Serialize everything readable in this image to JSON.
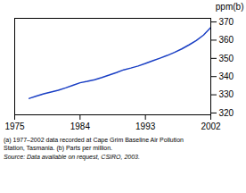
{
  "chart_data": {
    "type": "line",
    "ylabel": "ppm(b)",
    "x": [
      1977,
      1978,
      1979,
      1980,
      1981,
      1982,
      1983,
      1984,
      1985,
      1986,
      1987,
      1988,
      1989,
      1990,
      1991,
      1992,
      1993,
      1994,
      1995,
      1996,
      1997,
      1998,
      1999,
      2000,
      2001,
      2002
    ],
    "values": [
      328.0,
      329.3,
      330.5,
      331.5,
      332.5,
      333.8,
      335.2,
      336.6,
      337.4,
      338.3,
      339.5,
      340.8,
      342.2,
      343.7,
      344.7,
      345.8,
      347.2,
      348.7,
      350.1,
      351.6,
      353.3,
      355.2,
      357.4,
      359.8,
      362.8,
      367.0
    ],
    "color": "#1a3fc4",
    "xlim": [
      1975,
      2002
    ],
    "ylim": [
      319,
      372
    ],
    "xticks": [
      1975,
      1984,
      1993,
      2002
    ],
    "yticks": [
      320,
      330,
      340,
      350,
      360,
      370
    ],
    "grid": false,
    "caption": [
      "(a) 1977–2002 data recorded at Cape Grim Baseline Air Pollution",
      "Station, Tasmania. (b) Parts per million.",
      "Source: Data available on request, CSIRO, 2003."
    ]
  }
}
